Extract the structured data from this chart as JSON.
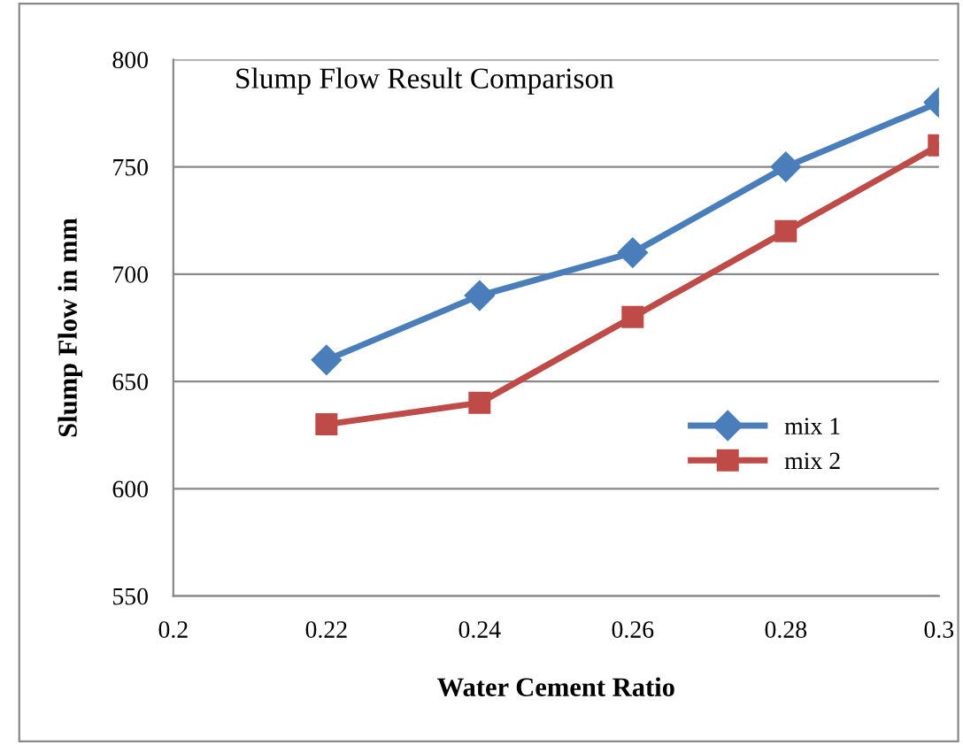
{
  "chart_data": {
    "type": "line",
    "title": "Slump Flow Result Comparison",
    "xlabel": "Water Cement Ratio",
    "ylabel": "Slump Flow in mm",
    "x": [
      0.22,
      0.24,
      0.26,
      0.28,
      0.3
    ],
    "series": [
      {
        "name": "mix 1",
        "color": "#4a7ebb",
        "marker": "diamond",
        "values": [
          660,
          690,
          710,
          750,
          780
        ]
      },
      {
        "name": "mix 2",
        "color": "#be4b48",
        "marker": "square",
        "values": [
          630,
          640,
          680,
          720,
          760
        ]
      }
    ],
    "xlim": [
      0.2,
      0.3
    ],
    "xticks": [
      {
        "value": 0.2,
        "label": "0.2"
      },
      0.22,
      0.24,
      0.26,
      0.28,
      {
        "value": 0.3,
        "label": "0.3"
      }
    ],
    "ylim": [
      550,
      800
    ],
    "yticks": [
      550,
      600,
      650,
      700,
      750,
      800
    ],
    "grid": "y",
    "legend": "right",
    "line_style": "solid"
  }
}
